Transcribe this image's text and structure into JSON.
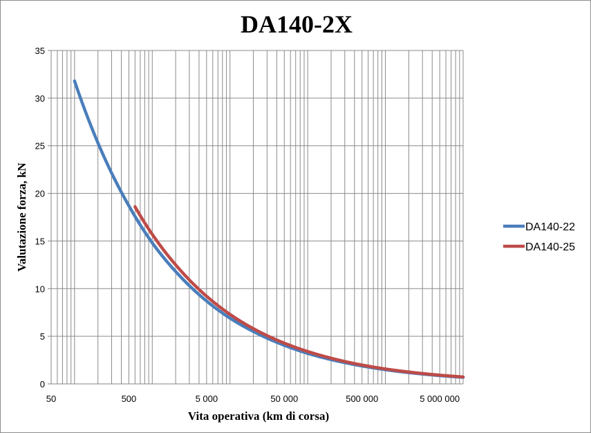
{
  "chart_data": {
    "type": "line",
    "title": "DA140-2X",
    "xlabel": "Vita operativa (km di corsa)",
    "ylabel": "Valutazione forza, kN",
    "xscale": "log",
    "xlim": [
      50,
      10000000
    ],
    "ylim": [
      0,
      35
    ],
    "xticks": [
      50,
      500,
      5000,
      50000,
      500000,
      5000000
    ],
    "xtick_labels": [
      "50",
      "500",
      "5 000",
      "50 000",
      "500 000",
      "5 000 000"
    ],
    "yticks": [
      0,
      5,
      10,
      15,
      20,
      25,
      30,
      35
    ],
    "ytick_labels": [
      "0",
      "5",
      "10",
      "15",
      "20",
      "25",
      "30",
      "35"
    ],
    "grid": true,
    "legend_position": "right",
    "series": [
      {
        "name": "DA140-22",
        "color": "#4a7ebb",
        "x": [
          100,
          200,
          500,
          1000,
          2000,
          5000,
          10000,
          20000,
          50000,
          100000,
          200000,
          500000,
          1000000,
          2000000,
          5000000,
          10000000
        ],
        "y": [
          31.8,
          25.3,
          18.7,
          14.8,
          11.8,
          8.7,
          6.9,
          5.5,
          4.05,
          3.2,
          2.55,
          1.88,
          1.49,
          1.18,
          0.87,
          0.69
        ]
      },
      {
        "name": "DA140-25",
        "color": "#be4b48",
        "x": [
          600,
          1000,
          2000,
          5000,
          10000,
          20000,
          50000,
          100000,
          200000,
          500000,
          1000000,
          2000000,
          5000000,
          10000000
        ],
        "y": [
          18.6,
          15.7,
          12.5,
          9.2,
          7.3,
          5.8,
          4.28,
          3.4,
          2.7,
          1.98,
          1.57,
          1.25,
          0.92,
          0.73
        ]
      }
    ]
  }
}
